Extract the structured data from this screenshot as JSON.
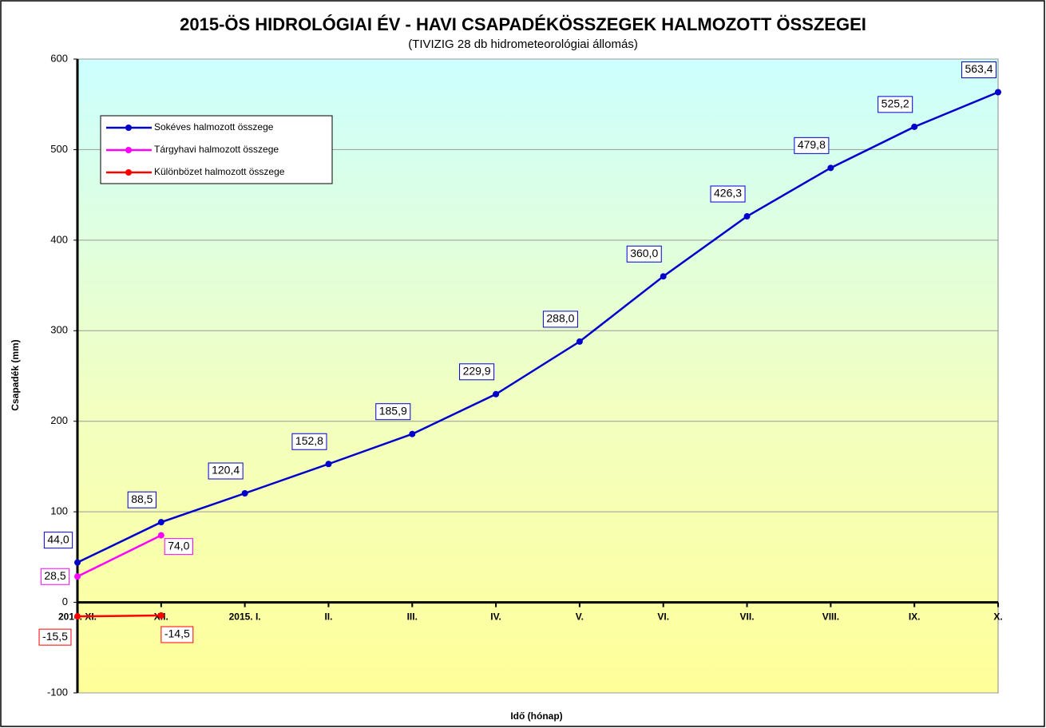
{
  "chart_data": {
    "type": "line",
    "title": "2015-ÖS HIDROLÓGIAI ÉV - HAVI CSAPADÉKÖSSZEGEK HALMOZOTT ÖSSZEGEI",
    "subtitle": "(TIVIZIG 28 db hidrometeorológiai állomás)",
    "y_label": "Csapadék (mm)",
    "x_label": "Idő (hónap)",
    "categories": [
      "2014. XI.",
      "XII.",
      "2015. I.",
      "II.",
      "III.",
      "IV.",
      "V.",
      "VI.",
      "VII.",
      "VIII.",
      "IX.",
      "X."
    ],
    "series": [
      {
        "name": "Sokéves halmozott összege",
        "color": "#0000cc",
        "values": [
          44.0,
          88.5,
          120.4,
          152.8,
          185.9,
          229.9,
          288.0,
          360.0,
          426.3,
          479.8,
          525.2,
          563.4
        ],
        "value_labels": [
          "44,0",
          "88,5",
          "120,4",
          "152,8",
          "185,9",
          "229,9",
          "288,0",
          "360,0",
          "426,3",
          "479,8",
          "525,2",
          "563,4"
        ]
      },
      {
        "name": "Tárgyhavi halmozott összege",
        "color": "#ff00ff",
        "values": [
          28.5,
          74.0,
          null,
          null,
          null,
          null,
          null,
          null,
          null,
          null,
          null,
          null
        ],
        "value_labels": [
          "28,5",
          "74,0",
          null,
          null,
          null,
          null,
          null,
          null,
          null,
          null,
          null,
          null
        ]
      },
      {
        "name": "Különbözet halmozott összege",
        "color": "#ff0000",
        "values": [
          -15.5,
          -14.5,
          null,
          null,
          null,
          null,
          null,
          null,
          null,
          null,
          null,
          null
        ],
        "value_labels": [
          "-15,5",
          "-14,5",
          null,
          null,
          null,
          null,
          null,
          null,
          null,
          null,
          null,
          null
        ]
      }
    ],
    "ylim": [
      -100,
      600
    ],
    "yticks": [
      -100,
      0,
      100,
      200,
      300,
      400,
      500,
      600
    ],
    "grid": true
  }
}
